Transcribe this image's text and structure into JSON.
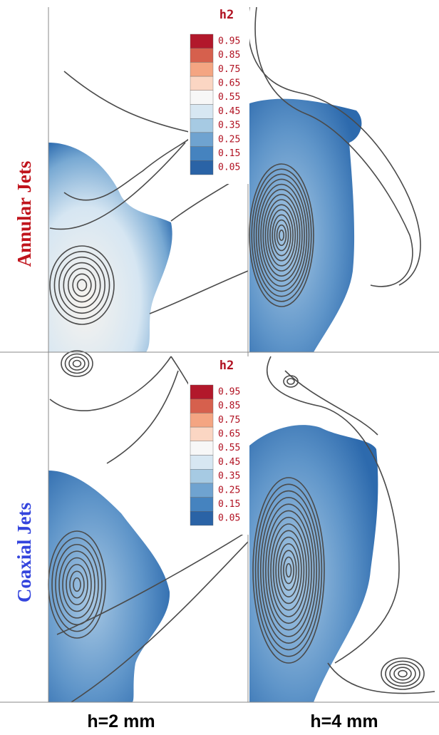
{
  "row_labels": [
    "Annular Jets",
    "Coaxial Jets"
  ],
  "column_labels": [
    "h=2 mm",
    "h=4 mm"
  ],
  "colorbars": [
    {
      "title": "h2",
      "labels": [
        "0.95",
        "0.85",
        "0.75",
        "0.65",
        "0.55",
        "0.45",
        "0.35",
        "0.25",
        "0.15",
        "0.05"
      ]
    },
    {
      "title": "h2",
      "labels": [
        "0.95",
        "0.85",
        "0.75",
        "0.65",
        "0.55",
        "0.45",
        "0.35",
        "0.25",
        "0.15",
        "0.05"
      ]
    }
  ]
}
